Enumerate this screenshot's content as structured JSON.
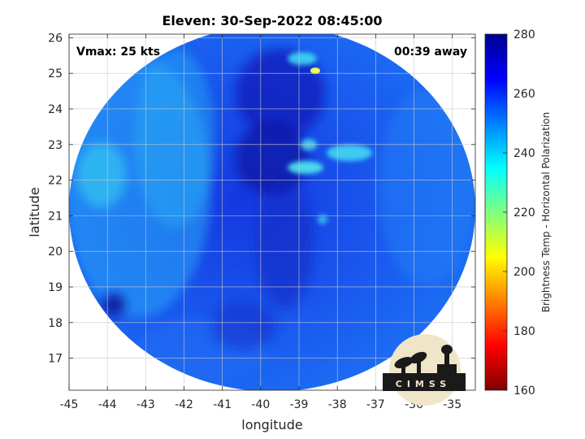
{
  "title": "Eleven: 30-Sep-2022 08:45:00",
  "vmax_label": "Vmax: 25 kts",
  "time_away_label": "00:39 away",
  "logo_text": "CIMSS",
  "chart_data": {
    "type": "heatmap",
    "xlabel": "longitude",
    "ylabel": "latitude",
    "xlim": [
      -45,
      -34.4
    ],
    "ylim": [
      16.1,
      26.1
    ],
    "x_ticks": [
      -45,
      -44,
      -43,
      -42,
      -41,
      -40,
      -39,
      -38,
      -37,
      -36,
      -35
    ],
    "y_ticks": [
      17,
      18,
      19,
      20,
      21,
      22,
      23,
      24,
      25,
      26
    ],
    "grid": true,
    "swath_center": [
      -39.7,
      21.2
    ],
    "colorbar": {
      "label": "Brightness Temp - Horizontal Polarization",
      "min": 160,
      "max": 280,
      "ticks": [
        160,
        180,
        200,
        220,
        240,
        260,
        280
      ],
      "colormap": "jet",
      "position": "right"
    },
    "features": [
      {
        "type": "warm-region",
        "lon": -39.5,
        "lat": 24.5,
        "value": 272
      },
      {
        "type": "warm-region",
        "lon": -39.5,
        "lat": 22.7,
        "value": 272
      },
      {
        "type": "cool-feature",
        "lon": -38.5,
        "lat": 25.0,
        "value": 205
      },
      {
        "type": "cool-feature",
        "lon": -38.8,
        "lat": 22.3,
        "value": 238
      },
      {
        "type": "cool-feature",
        "lon": -37.8,
        "lat": 22.7,
        "value": 240
      },
      {
        "type": "cool-band",
        "lon": -43.8,
        "lat": 22.2,
        "value": 240
      },
      {
        "type": "warm-spot",
        "lon": -44.0,
        "lat": 18.4,
        "value": 270
      }
    ]
  }
}
